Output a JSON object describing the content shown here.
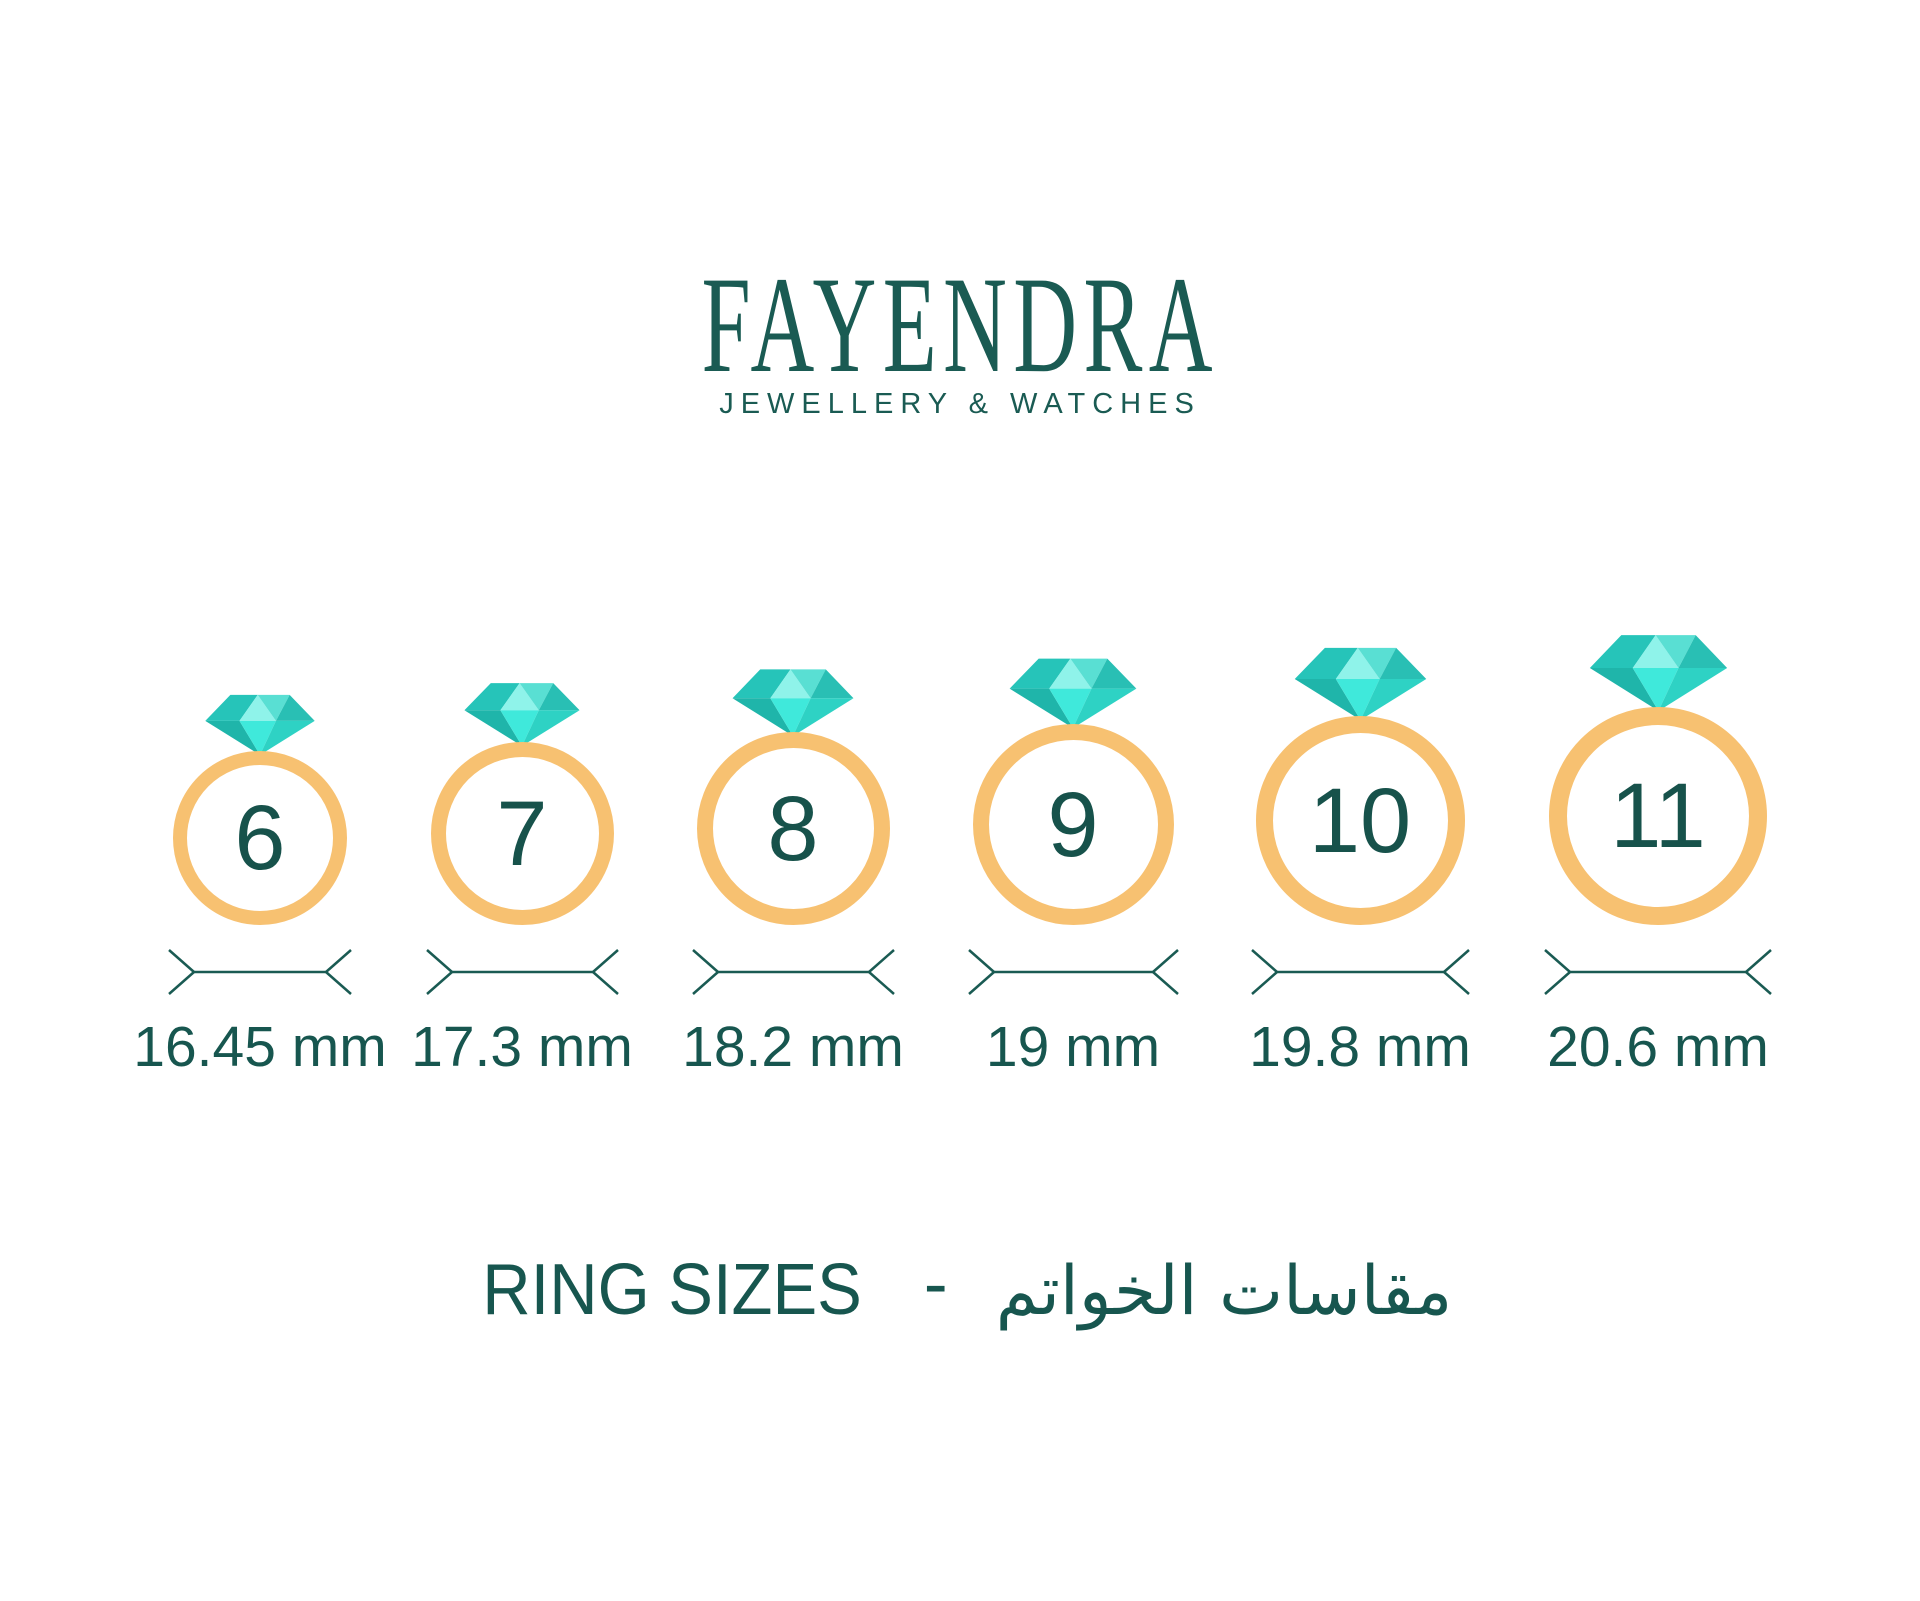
{
  "brand": {
    "name": "FAYENDRA",
    "tagline": "JEWELLERY & WATCHES"
  },
  "rings": [
    {
      "size": "6",
      "diameter_label": "16.45 mm"
    },
    {
      "size": "7",
      "diameter_label": "17.3 mm"
    },
    {
      "size": "8",
      "diameter_label": "18.2 mm"
    },
    {
      "size": "9",
      "diameter_label": "19 mm"
    },
    {
      "size": "10",
      "diameter_label": "19.8 mm"
    },
    {
      "size": "11",
      "diameter_label": "20.6 mm"
    }
  ],
  "footer": {
    "title_en": "RING SIZES",
    "separator": "-",
    "title_ar": "مقاسات الخواتم"
  },
  "icons": {
    "diamond": "diamond-gem-icon",
    "dimension": "width-dimension-arrows-icon"
  },
  "colors": {
    "background": "#ffffff",
    "logo": "#1a5b53",
    "text": "#17564f",
    "number": "#17524b",
    "band": "#f7c171",
    "dline": "#1a5b53",
    "d_crown_left": "#26c4b9",
    "d_crown_center": "#8ff3ea",
    "d_crown_right": "#59dfd3",
    "d_crown_far_right": "#29bfb4",
    "d_pav_left": "#1fb5aa",
    "d_pav_center": "#3fe9db",
    "d_pav_right": "#2ed2c4"
  }
}
